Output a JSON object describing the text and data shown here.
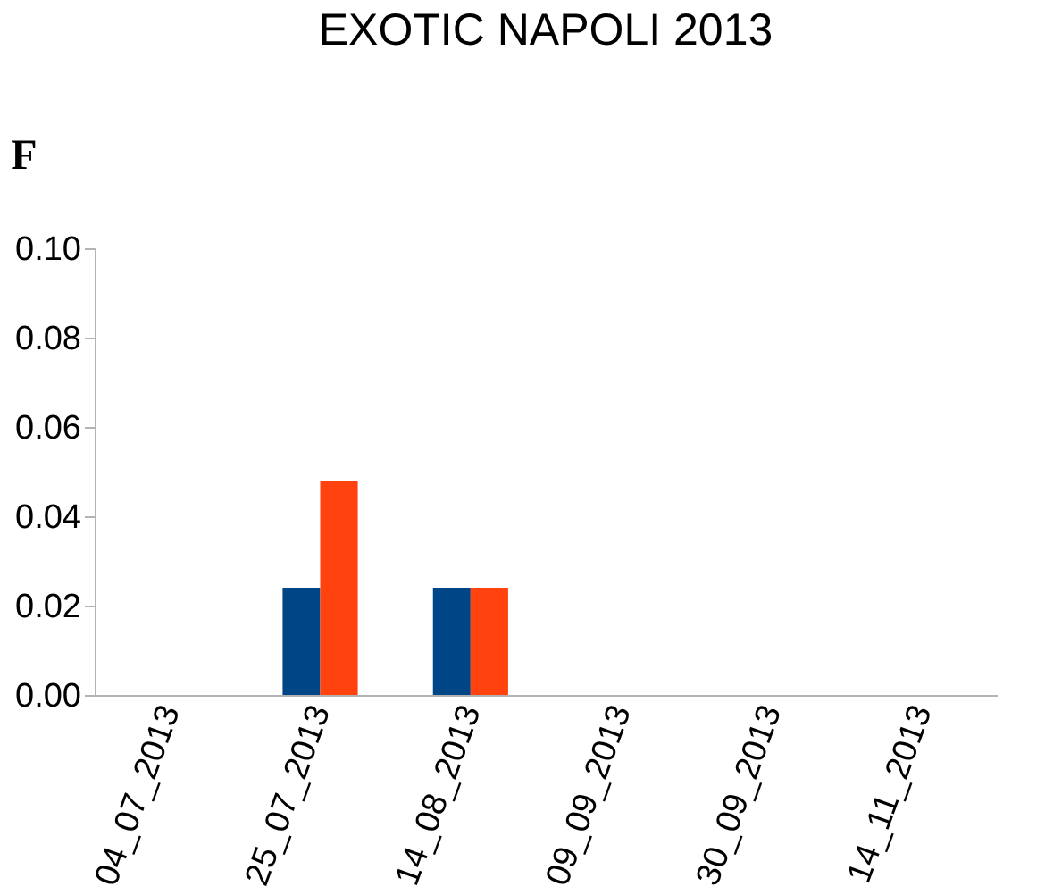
{
  "chart_data": {
    "type": "bar",
    "title": "EXOTIC NAPOLI 2013",
    "ylabel": "F",
    "categories": [
      "04_07_2013",
      "25_07_2013",
      "14_08_2013",
      "09_09_2013",
      "30_09_2013",
      "14_11_2013"
    ],
    "series": [
      {
        "color": "#004586",
        "values": [
          0,
          0.024,
          0.024,
          0,
          0,
          0
        ]
      },
      {
        "color": "#ff420e",
        "values": [
          0,
          0.048,
          0.024,
          0,
          0,
          0
        ]
      }
    ],
    "ylim": [
      0,
      0.1
    ],
    "yticks": [
      {
        "value": 0,
        "label": "0.00"
      },
      {
        "value": 0.02,
        "label": "0.02"
      },
      {
        "value": 0.04,
        "label": "0.04"
      },
      {
        "value": 0.06,
        "label": "0.06"
      },
      {
        "value": 0.08,
        "label": "0.08"
      },
      {
        "value": 0.1,
        "label": "0.10"
      }
    ],
    "grid": false,
    "legend": false
  }
}
